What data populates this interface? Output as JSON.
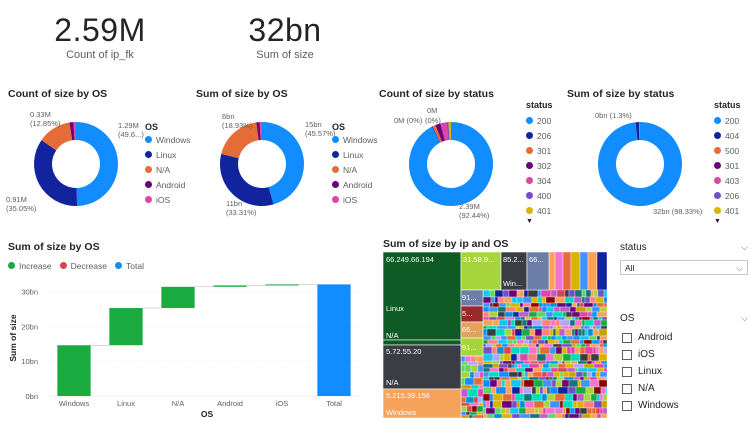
{
  "colors": {
    "windows": "#118DFF",
    "linux": "#12239E",
    "na": "#E66C37",
    "android": "#6B007B",
    "ios": "#E044A7",
    "increase": "#1AAB40",
    "decrease": "#D64554",
    "total": "#118DFF"
  },
  "kpis": [
    {
      "value": "2.59M",
      "label": "Count of ip_fk"
    },
    {
      "value": "32bn",
      "label": "Sum of size"
    }
  ],
  "os_legend": {
    "title": "OS",
    "items": [
      {
        "label": "Windows",
        "color": "#118DFF"
      },
      {
        "label": "Linux",
        "color": "#12239E"
      },
      {
        "label": "N/A",
        "color": "#E66C37"
      },
      {
        "label": "Android",
        "color": "#6B007B"
      },
      {
        "label": "iOS",
        "color": "#E044A7"
      }
    ]
  },
  "status_legend_1": {
    "title": "status",
    "items": [
      {
        "label": "200",
        "color": "#118DFF"
      },
      {
        "label": "206",
        "color": "#12239E"
      },
      {
        "label": "301",
        "color": "#E66C37"
      },
      {
        "label": "302",
        "color": "#6B007B"
      },
      {
        "label": "304",
        "color": "#E044A7"
      },
      {
        "label": "400",
        "color": "#744EC2"
      },
      {
        "label": "401",
        "color": "#D9B300"
      }
    ]
  },
  "status_legend_2": {
    "title": "status",
    "items": [
      {
        "label": "200",
        "color": "#118DFF"
      },
      {
        "label": "404",
        "color": "#12239E"
      },
      {
        "label": "500",
        "color": "#E66C37"
      },
      {
        "label": "301",
        "color": "#6B007B"
      },
      {
        "label": "403",
        "color": "#E044A7"
      },
      {
        "label": "206",
        "color": "#744EC2"
      },
      {
        "label": "401",
        "color": "#D9B300"
      }
    ]
  },
  "chart_data": [
    {
      "type": "pie",
      "title": "Count of size by OS",
      "slices": [
        {
          "label": "Windows",
          "value": 1.29,
          "pct": 49.6,
          "color": "#118DFF"
        },
        {
          "label": "Linux",
          "value": 0.91,
          "pct": 35.05,
          "color": "#12239E"
        },
        {
          "label": "N/A",
          "value": 0.33,
          "pct": 12.85,
          "color": "#E66C37"
        },
        {
          "label": "Android",
          "value": 0.04,
          "pct": 1.5,
          "color": "#6B007B"
        },
        {
          "label": "iOS",
          "value": 0.02,
          "pct": 1.0,
          "color": "#E044A7"
        }
      ],
      "data_labels": [
        {
          "line1": "1.29M",
          "line2": "(49.6...)"
        },
        {
          "line1": "0.91M",
          "line2": "(35.05%)"
        },
        {
          "line1": "0.33M",
          "line2": "(12.85%)"
        }
      ]
    },
    {
      "type": "pie",
      "title": "Sum of size by OS",
      "slices": [
        {
          "label": "Windows",
          "value": 15,
          "pct": 45.57,
          "color": "#118DFF"
        },
        {
          "label": "Linux",
          "value": 11,
          "pct": 33.31,
          "color": "#12239E"
        },
        {
          "label": "N/A",
          "value": 6,
          "pct": 18.93,
          "color": "#E66C37"
        },
        {
          "label": "Android",
          "value": 0.4,
          "pct": 1.3,
          "color": "#6B007B"
        },
        {
          "label": "iOS",
          "value": 0.3,
          "pct": 0.89,
          "color": "#E044A7"
        }
      ],
      "data_labels": [
        {
          "line1": "15bn",
          "line2": "(45.57%)"
        },
        {
          "line1": "11bn",
          "line2": "(33.31%)"
        },
        {
          "line1": "6bn",
          "line2": "(18.93%)"
        }
      ]
    },
    {
      "type": "pie",
      "title": "Count of size by status",
      "slices": [
        {
          "label": "200",
          "value": 2.39,
          "pct": 92.44,
          "color": "#118DFF"
        },
        {
          "label": "206",
          "value": 0.01,
          "pct": 0.3,
          "color": "#12239E"
        },
        {
          "label": "301",
          "value": 0.03,
          "pct": 1.2,
          "color": "#E66C37"
        },
        {
          "label": "302",
          "value": 0.05,
          "pct": 2.0,
          "color": "#6B007B"
        },
        {
          "label": "304",
          "value": 0.06,
          "pct": 2.3,
          "color": "#E044A7"
        },
        {
          "label": "400",
          "value": 0.02,
          "pct": 0.8,
          "color": "#744EC2"
        },
        {
          "label": "401",
          "value": 0.025,
          "pct": 0.96,
          "color": "#D9B300"
        }
      ],
      "data_labels": [
        {
          "line1": "0M",
          "line2": ""
        },
        {
          "line1": "0M (0%)",
          "line2": ""
        },
        {
          "line1": "(0%)",
          "line2": ""
        },
        {
          "line1": "2.39M",
          "line2": "(92.44%)"
        }
      ]
    },
    {
      "type": "pie",
      "title": "Sum of size by status",
      "slices": [
        {
          "label": "200",
          "value": 32,
          "pct": 98.33,
          "color": "#118DFF"
        },
        {
          "label": "404",
          "value": 0.42,
          "pct": 1.3,
          "color": "#12239E"
        },
        {
          "label": "500",
          "value": 0.05,
          "pct": 0.17,
          "color": "#E66C37"
        },
        {
          "label": "301",
          "value": 0.03,
          "pct": 0.1,
          "color": "#6B007B"
        },
        {
          "label": "403",
          "value": 0.03,
          "pct": 0.1,
          "color": "#E044A7"
        }
      ],
      "data_labels": [
        {
          "line1": "0bn (1.3%)",
          "line2": ""
        },
        {
          "line1": "32bn (98.33%)",
          "line2": ""
        }
      ]
    },
    {
      "type": "bar",
      "subtype": "waterfall",
      "title": "Sum of size by OS",
      "categories": [
        "Windows",
        "Linux",
        "N/A",
        "Android",
        "iOS",
        "Total"
      ],
      "values": [
        14.6,
        10.7,
        6.1,
        0.4,
        0.3,
        32.1
      ],
      "kinds": [
        "increase",
        "increase",
        "increase",
        "increase",
        "increase",
        "total"
      ],
      "legend": [
        {
          "label": "Increase",
          "color": "#1AAB40"
        },
        {
          "label": "Decrease",
          "color": "#D64554"
        },
        {
          "label": "Total",
          "color": "#118DFF"
        }
      ],
      "xlabel": "OS",
      "ylabel": "Sum of size",
      "ylim": [
        0,
        32.5
      ],
      "yticks": [
        {
          "v": 0,
          "label": "0bn"
        },
        {
          "v": 10,
          "label": "10bn"
        },
        {
          "v": 20,
          "label": "20bn"
        },
        {
          "v": 30,
          "label": "30bn"
        }
      ]
    }
  ],
  "treemap": {
    "title": "Sum of size by ip and OS",
    "cells": [
      {
        "ip": "66.249.66.194",
        "os": "Linux"
      },
      {
        "ip": "",
        "os": "N/A"
      },
      {
        "ip": "5.72.55.20",
        "os": "N/A"
      },
      {
        "ip": "5.215.39.156",
        "os": "Windows"
      },
      {
        "ip": "31.58.9...",
        "os": ""
      },
      {
        "ip": "85.2...",
        "os": "Win..."
      },
      {
        "ip": "66...",
        "os": ""
      },
      {
        "ip": "91...",
        "os": ""
      },
      {
        "ip": "5...",
        "os": ""
      },
      {
        "ip": "66...",
        "os": ""
      },
      {
        "ip": "91...",
        "os": ""
      }
    ]
  },
  "status_slicer": {
    "title": "status",
    "value": "All"
  },
  "os_slicer": {
    "title": "OS",
    "options": [
      "Android",
      "iOS",
      "Linux",
      "N/A",
      "Windows"
    ]
  }
}
